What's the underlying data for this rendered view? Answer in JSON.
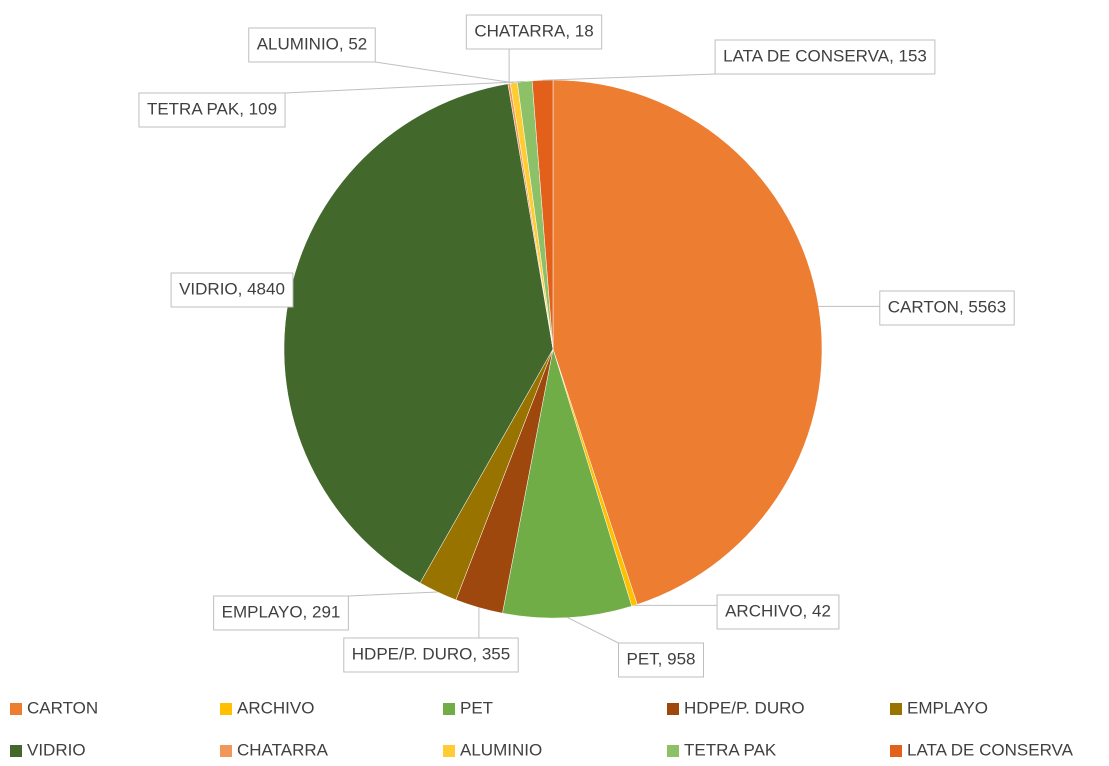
{
  "chart_data": {
    "type": "pie",
    "categories": [
      "CARTON",
      "ARCHIVO",
      "PET",
      "HDPE/P. DURO",
      "EMPLAYO",
      "VIDRIO",
      "CHATARRA",
      "ALUMINIO",
      "TETRA PAK",
      "LATA DE CONSERVA"
    ],
    "values": [
      5563,
      42,
      958,
      355,
      291,
      4840,
      18,
      52,
      109,
      153
    ],
    "value_labels": [
      "CARTON, 5563",
      "ARCHIVO, 42",
      "PET, 958",
      "HDPE/P. DURO, 355",
      "EMPLAYO, 291",
      "VIDRIO, 4840",
      "CHATARRA, 18",
      "ALUMINIO, 52",
      "TETRA PAK, 109",
      "LATA DE CONSERVA, 153"
    ],
    "colors": [
      "#ed7d31",
      "#ffc000",
      "#70ad47",
      "#9e480e",
      "#997300",
      "#43682b",
      "#f1975a",
      "#ffcd33",
      "#8cc168",
      "#e2601a"
    ],
    "legend": "bottom"
  }
}
